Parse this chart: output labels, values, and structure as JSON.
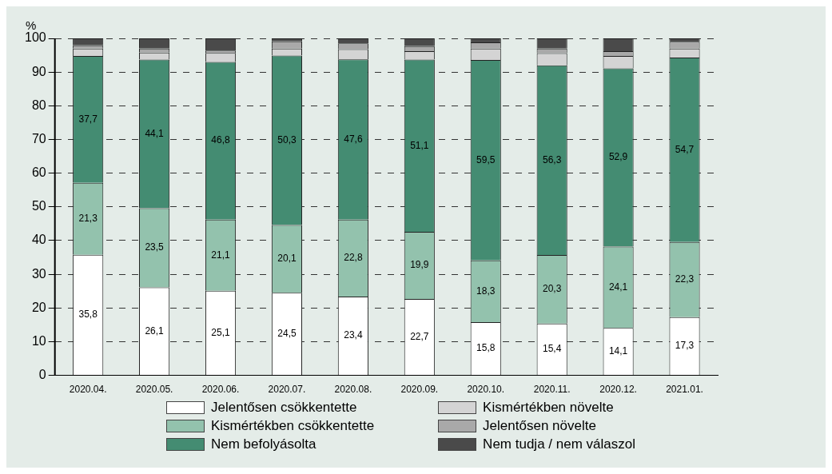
{
  "chart_data": {
    "type": "bar",
    "stacked": true,
    "ylabel": "%",
    "categories": [
      "2020.04.",
      "2020.05.",
      "2020.06.",
      "2020.07.",
      "2020.08.",
      "2020.09.",
      "2020.10.",
      "2020.11.",
      "2020.12.",
      "2021.01."
    ],
    "ylim": [
      0,
      100
    ],
    "yticks": [
      0,
      10,
      20,
      30,
      40,
      50,
      60,
      70,
      80,
      90,
      100
    ],
    "grid": "y",
    "legend": "bottom",
    "series": [
      {
        "name": "Jelentősen csökkentette",
        "color": "#ffffff",
        "values": [
          35.8,
          26.1,
          25.1,
          24.5,
          23.4,
          22.7,
          15.8,
          15.4,
          14.1,
          17.3
        ],
        "value_labels": [
          "35,8",
          "26,1",
          "25,1",
          "24,5",
          "23,4",
          "22,7",
          "15,8",
          "15,4",
          "14,1",
          "17,3"
        ]
      },
      {
        "name": "Kismértékben csökkentette",
        "color": "#93c2ad",
        "values": [
          21.3,
          23.5,
          21.1,
          20.1,
          22.8,
          19.9,
          18.3,
          20.3,
          24.1,
          22.3
        ],
        "value_labels": [
          "21,3",
          "23,5",
          "21,1",
          "20,1",
          "22,8",
          "19,9",
          "18,3",
          "20,3",
          "24,1",
          "22,3"
        ]
      },
      {
        "name": "Nem befolyásolta",
        "color": "#448c72",
        "values": [
          37.7,
          44.1,
          46.8,
          50.3,
          47.6,
          51.1,
          59.5,
          56.3,
          52.9,
          54.7
        ],
        "value_labels": [
          "37,7",
          "44,1",
          "46,8",
          "50,3",
          "47,6",
          "51,1",
          "59,5",
          "56,3",
          "52,9",
          "54,7"
        ]
      },
      {
        "name": "Kismértékben növelte",
        "color": "#d4d4d4",
        "values": [
          2.2,
          2.1,
          2.7,
          2.1,
          3.0,
          2.5,
          3.4,
          3.6,
          3.7,
          2.7
        ]
      },
      {
        "name": "Jelentősen növelte",
        "color": "#a9a9a9",
        "values": [
          0.9,
          1.2,
          0.7,
          2.1,
          1.7,
          1.5,
          1.8,
          1.4,
          1.4,
          2.0
        ]
      },
      {
        "name": "Nem tudja / nem válaszol",
        "color": "#4a4a4a",
        "values": [
          2.1,
          3.0,
          3.6,
          0.9,
          1.5,
          2.3,
          1.2,
          3.0,
          3.8,
          1.0
        ]
      }
    ]
  }
}
